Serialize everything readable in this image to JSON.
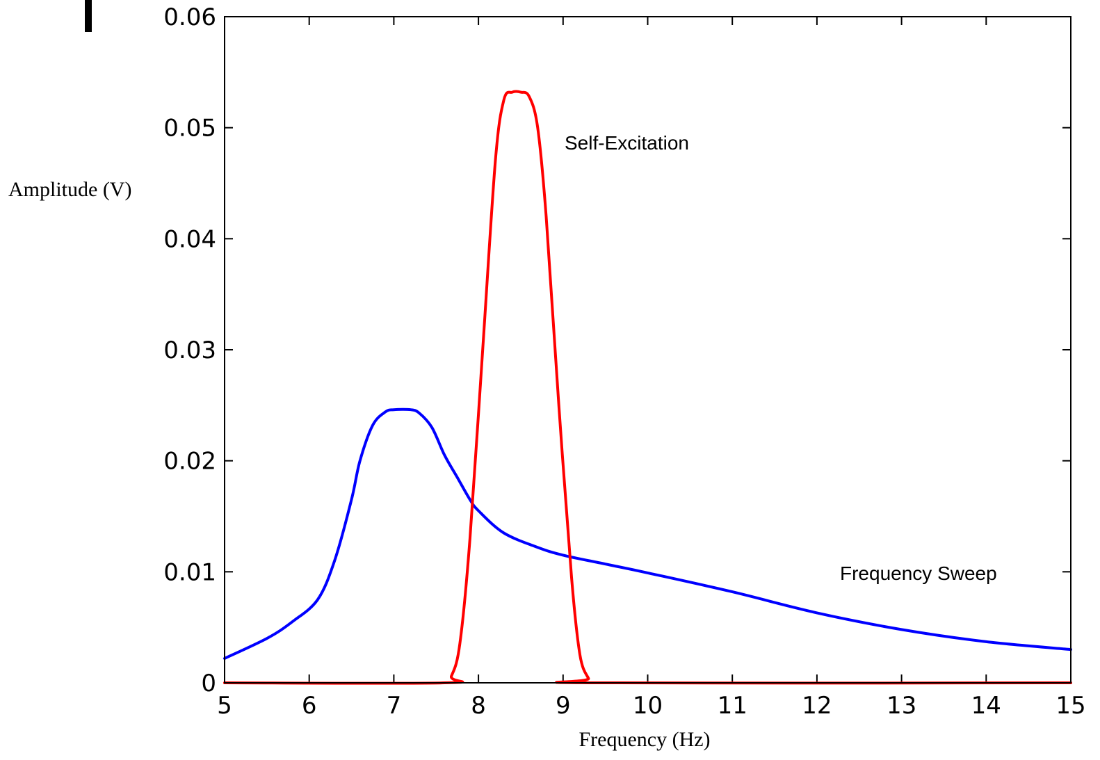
{
  "chart_data": {
    "type": "line",
    "xlabel": "Frequency (Hz)",
    "ylabel": "Amplitude (V)",
    "xlim": [
      5,
      15
    ],
    "ylim": [
      0,
      0.06
    ],
    "xticks": [
      "5",
      "6",
      "7",
      "8",
      "9",
      "10",
      "11",
      "12",
      "13",
      "14",
      "15"
    ],
    "yticks": [
      "0",
      "0.01",
      "0.02",
      "0.03",
      "0.04",
      "0.05",
      "0.06"
    ],
    "grid": false,
    "legend": "none",
    "annotations": [
      "Self-Excitation",
      "Frequency Sweep"
    ],
    "series": [
      {
        "color": "#0000ff",
        "x": [
          5.0,
          5.5,
          5.8,
          6.1,
          6.3,
          6.5,
          6.6,
          6.75,
          6.9,
          7.0,
          7.2,
          7.3,
          7.45,
          7.6,
          7.75,
          7.9,
          8.0,
          8.3,
          8.7,
          9.0,
          9.5,
          10.0,
          11.0,
          12.0,
          13.0,
          14.0,
          15.0
        ],
        "y": [
          0.0022,
          0.004,
          0.0055,
          0.0075,
          0.011,
          0.0165,
          0.02,
          0.0232,
          0.0244,
          0.0246,
          0.0246,
          0.0243,
          0.023,
          0.0205,
          0.0185,
          0.0165,
          0.0155,
          0.0135,
          0.0122,
          0.0115,
          0.0107,
          0.0099,
          0.0082,
          0.0063,
          0.0048,
          0.0037,
          0.003
        ]
      },
      {
        "color": "#ff0000",
        "x": [
          5.0,
          7.6,
          7.68,
          7.78,
          7.9,
          8.05,
          8.2,
          8.3,
          8.4,
          8.5,
          8.6,
          8.7,
          8.8,
          8.95,
          9.1,
          9.2,
          9.3,
          9.35,
          15.0
        ],
        "y": [
          0.0,
          0.0,
          0.0006,
          0.0035,
          0.013,
          0.03,
          0.047,
          0.0525,
          0.0532,
          0.0532,
          0.0528,
          0.05,
          0.042,
          0.025,
          0.0095,
          0.0025,
          0.0004,
          0.0,
          0.0
        ]
      }
    ]
  },
  "colors": {
    "axis": "#000000",
    "sweep": "#0000ff",
    "self_excitation": "#ff0000"
  }
}
